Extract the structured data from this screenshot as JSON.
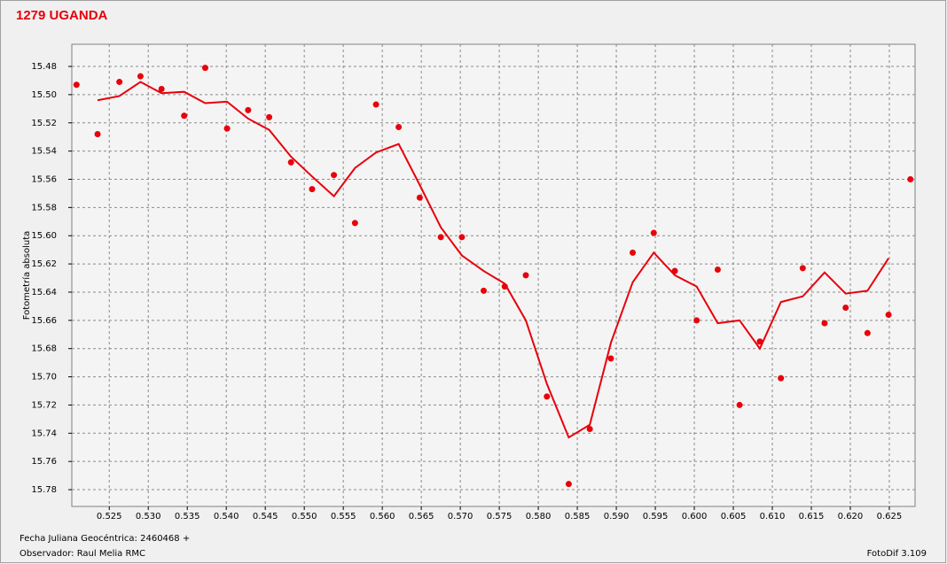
{
  "chart_data": {
    "type": "scatter-line",
    "title": "1279 UGANDA",
    "y_label": "Fotometría absoluta",
    "x_label": "Fecha Juliana Geocéntrica: 2460468 +",
    "observer": "Observador: Raul Melia RMC",
    "software": "FotoDif 3.109",
    "xlim": [
      0.5202,
      0.6283
    ],
    "ylim": [
      15.4643,
      15.7919
    ],
    "y_inverted": true,
    "grid": true,
    "xticks": [
      0.525,
      0.53,
      0.535,
      0.54,
      0.545,
      0.55,
      0.555,
      0.56,
      0.565,
      0.57,
      0.575,
      0.58,
      0.585,
      0.59,
      0.595,
      0.6,
      0.605,
      0.61,
      0.615,
      0.62,
      0.625
    ],
    "xtick_labels": [
      "0.525",
      "0.530",
      "0.535",
      "0.540",
      "0.545",
      "0.550",
      "0.555",
      "0.560",
      "0.565",
      "0.570",
      "0.575",
      "0.580",
      "0.585",
      "0.590",
      "0.595",
      "0.600",
      "0.605",
      "0.610",
      "0.615",
      "0.620",
      "0.625"
    ],
    "yticks": [
      15.48,
      {
        "value": 15.5,
        "label": "15.50"
      },
      15.52,
      15.54,
      15.56,
      15.58,
      {
        "value": 15.6,
        "label": "15.60"
      },
      15.62,
      15.64,
      15.66,
      15.68,
      {
        "value": 15.7,
        "label": "15.70"
      },
      15.72,
      15.74,
      15.76,
      15.78
    ],
    "series": [
      {
        "kind": "points",
        "color": "#e8000b",
        "x": [
          0.5208,
          0.5235,
          0.5263,
          0.529,
          0.5317,
          0.5346,
          0.5373,
          0.5401,
          0.5428,
          0.5455,
          0.5483,
          0.551,
          0.5538,
          0.5565,
          0.5592,
          0.5621,
          0.5648,
          0.5675,
          0.5702,
          0.573,
          0.5757,
          0.5784,
          0.5811,
          0.5839,
          0.5866,
          0.5893,
          0.5921,
          0.5948,
          0.5975,
          0.6003,
          0.603,
          0.6058,
          0.6084,
          0.6111,
          0.6139,
          0.6167,
          0.6194,
          0.6222,
          0.6249,
          0.6277
        ],
        "values": [
          15.493,
          15.528,
          15.491,
          15.487,
          15.496,
          15.515,
          15.481,
          15.524,
          15.511,
          15.516,
          15.548,
          15.567,
          15.557,
          15.591,
          15.507,
          15.523,
          15.573,
          15.601,
          15.601,
          15.639,
          15.636,
          15.628,
          15.714,
          15.776,
          15.737,
          15.687,
          15.612,
          15.598,
          15.625,
          15.66,
          15.624,
          15.72,
          15.675,
          15.701,
          15.623,
          15.662,
          15.651,
          15.669,
          15.656,
          15.56
        ]
      },
      {
        "kind": "line",
        "color": "#e8000b",
        "x": [
          0.5235,
          0.5263,
          0.529,
          0.5317,
          0.5346,
          0.5373,
          0.5401,
          0.5428,
          0.5455,
          0.5483,
          0.551,
          0.5538,
          0.5565,
          0.5592,
          0.5621,
          0.5648,
          0.5675,
          0.5702,
          0.573,
          0.5757,
          0.5784,
          0.5811,
          0.5839,
          0.5866,
          0.5893,
          0.5921,
          0.5948,
          0.5975,
          0.6003,
          0.603,
          0.6058,
          0.6084,
          0.6111,
          0.6139,
          0.6167,
          0.6194,
          0.6222,
          0.6249
        ],
        "values": [
          15.504,
          15.501,
          15.491,
          15.499,
          15.498,
          15.506,
          15.505,
          15.517,
          15.525,
          15.544,
          15.558,
          15.572,
          15.552,
          15.541,
          15.535,
          15.564,
          15.594,
          15.614,
          15.625,
          15.634,
          15.66,
          15.705,
          15.743,
          15.734,
          15.676,
          15.633,
          15.612,
          15.628,
          15.636,
          15.662,
          15.66,
          15.68,
          15.647,
          15.643,
          15.626,
          15.641,
          15.639,
          15.616
        ]
      }
    ]
  }
}
